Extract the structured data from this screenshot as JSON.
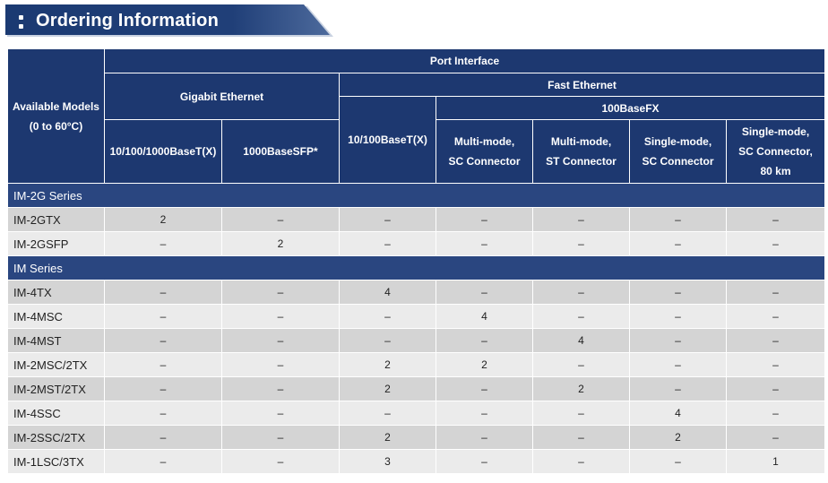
{
  "title": "Ordering Information",
  "header": {
    "available_models": "Available Models",
    "temp_range": "(0 to 60°C)",
    "port_interface": "Port Interface",
    "gigabit": "Gigabit Ethernet",
    "fast": "Fast Ethernet",
    "fx": "100BaseFX",
    "col_gtx": "10/100/1000BaseT(X)",
    "col_sfp": "1000BaseSFP*",
    "col_tx": "10/100BaseT(X)",
    "col_msc_1": "Multi-mode,",
    "col_msc_2": "SC Connector",
    "col_mst_1": "Multi-mode,",
    "col_mst_2": "ST Connector",
    "col_ssc_1": "Single-mode,",
    "col_ssc_2": "SC Connector",
    "col_lsc_1": "Single-mode,",
    "col_lsc_2": "SC Connector,",
    "col_lsc_3": "80 km"
  },
  "sections": [
    {
      "name": "IM-2G Series",
      "rows": [
        {
          "model": "IM-2GTX",
          "values": [
            "2",
            "–",
            "–",
            "–",
            "–",
            "–",
            "–"
          ]
        },
        {
          "model": "IM-2GSFP",
          "values": [
            "–",
            "2",
            "–",
            "–",
            "–",
            "–",
            "–"
          ]
        }
      ]
    },
    {
      "name": "IM Series",
      "rows": [
        {
          "model": "IM-4TX",
          "values": [
            "–",
            "–",
            "4",
            "–",
            "–",
            "–",
            "–"
          ]
        },
        {
          "model": "IM-4MSC",
          "values": [
            "–",
            "–",
            "–",
            "4",
            "–",
            "–",
            "–"
          ]
        },
        {
          "model": "IM-4MST",
          "values": [
            "–",
            "–",
            "–",
            "–",
            "4",
            "–",
            "–"
          ]
        },
        {
          "model": "IM-2MSC/2TX",
          "values": [
            "–",
            "–",
            "2",
            "2",
            "–",
            "–",
            "–"
          ]
        },
        {
          "model": "IM-2MST/2TX",
          "values": [
            "–",
            "–",
            "2",
            "–",
            "2",
            "–",
            "–"
          ]
        },
        {
          "model": "IM-4SSC",
          "values": [
            "–",
            "–",
            "–",
            "–",
            "–",
            "4",
            "–"
          ]
        },
        {
          "model": "IM-2SSC/2TX",
          "values": [
            "–",
            "–",
            "2",
            "–",
            "–",
            "2",
            "–"
          ]
        },
        {
          "model": "IM-1LSC/3TX",
          "values": [
            "–",
            "–",
            "3",
            "–",
            "–",
            "–",
            "1"
          ]
        }
      ]
    }
  ]
}
